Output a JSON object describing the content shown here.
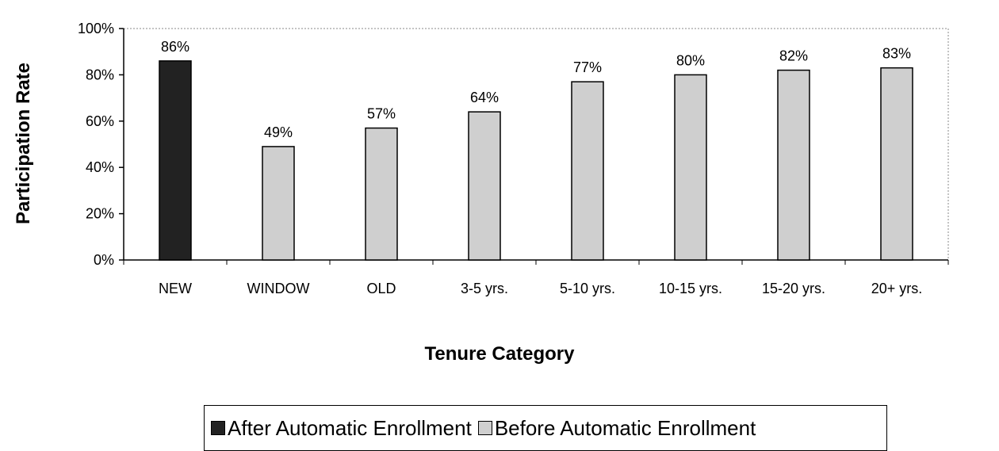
{
  "chart_data": {
    "type": "bar",
    "categories": [
      "NEW",
      "WINDOW",
      "OLD",
      "3-5 yrs.",
      "5-10 yrs.",
      "10-15 yrs.",
      "15-20 yrs.",
      "20+ yrs."
    ],
    "series": [
      {
        "name": "After Automatic Enrollment",
        "color": "#222222",
        "values": [
          86,
          null,
          null,
          null,
          null,
          null,
          null,
          null
        ]
      },
      {
        "name": "Before Automatic Enrollment",
        "color": "#cfcfcf",
        "values": [
          null,
          49,
          57,
          64,
          77,
          80,
          82,
          83
        ]
      }
    ],
    "data_labels": [
      "86%",
      "49%",
      "57%",
      "64%",
      "77%",
      "80%",
      "82%",
      "83%"
    ],
    "yticks": [
      "0%",
      "20%",
      "40%",
      "60%",
      "80%",
      "100%"
    ],
    "ylim": [
      0,
      100
    ],
    "ylabel": "Participation Rate",
    "xlabel": "Tenure Category",
    "legend_position": "bottom"
  }
}
